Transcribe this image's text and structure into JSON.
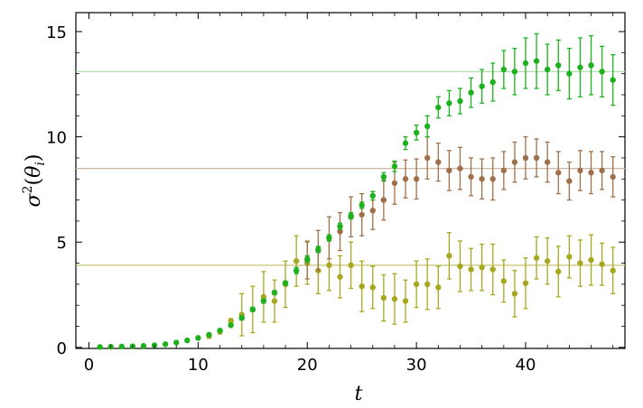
{
  "chart_data": {
    "type": "scatter",
    "xlabel": "t",
    "ylabel_parts": {
      "base": "σ",
      "sup": "2",
      "open": "(",
      "var": "θ",
      "sub": "i",
      "close": ")"
    },
    "xlim": [
      -1.2,
      49.1
    ],
    "ylim": [
      -0.05,
      15.9
    ],
    "x_ticks": [
      0,
      10,
      20,
      30,
      40
    ],
    "y_ticks": [
      0,
      5,
      10,
      15
    ],
    "grid": false,
    "legend": "none",
    "reference_lines": [
      {
        "y": 13.1,
        "color": "#a8dca8"
      },
      {
        "y": 8.5,
        "color": "#cdb8a4"
      },
      {
        "y": 3.9,
        "color": "#c9c370"
      }
    ],
    "series": [
      {
        "color": "#1db21d",
        "x": [
          1,
          2,
          3,
          4,
          5,
          6,
          7,
          8,
          9,
          10,
          11,
          12,
          13,
          14,
          15,
          16,
          17,
          18,
          19,
          20,
          21,
          22,
          23,
          24,
          25,
          26,
          27,
          28,
          29,
          30,
          31,
          32,
          33,
          34,
          35,
          36,
          37,
          38,
          39,
          40,
          41,
          42,
          43,
          44,
          45,
          46,
          47,
          48
        ],
        "y": [
          0.02,
          0.03,
          0.04,
          0.05,
          0.07,
          0.1,
          0.15,
          0.23,
          0.33,
          0.45,
          0.6,
          0.8,
          1.05,
          1.4,
          1.8,
          2.2,
          2.6,
          3.05,
          3.65,
          4.2,
          4.65,
          5.2,
          5.75,
          6.25,
          6.75,
          7.2,
          8.1,
          8.6,
          9.7,
          10.2,
          10.5,
          11.4,
          11.6,
          11.7,
          12.1,
          12.4,
          12.6,
          13.2,
          13.1,
          13.5,
          13.6,
          13.2,
          13.4,
          13.0,
          13.3,
          13.4,
          13.1,
          12.7
        ],
        "err": [
          0,
          0,
          0,
          0,
          0,
          0,
          0,
          0,
          0,
          0,
          0,
          0,
          0,
          0.1,
          0.1,
          0.1,
          0.1,
          0.1,
          0.15,
          0.15,
          0.15,
          0.15,
          0.15,
          0.15,
          0.15,
          0.2,
          0.2,
          0.25,
          0.3,
          0.35,
          0.5,
          0.5,
          0.6,
          0.6,
          0.7,
          0.8,
          0.9,
          0.9,
          1.1,
          1.2,
          1.3,
          1.2,
          1.2,
          1.2,
          1.4,
          1.4,
          1.2,
          1.2
        ]
      },
      {
        "color": "#a0704a",
        "x": [
          20,
          21,
          22,
          23,
          24,
          25,
          26,
          27,
          28,
          29,
          30,
          31,
          32,
          33,
          34,
          35,
          36,
          37,
          38,
          39,
          40,
          41,
          42,
          43,
          44,
          45,
          46,
          47,
          48
        ],
        "y": [
          4.15,
          4.6,
          5.2,
          5.5,
          6.2,
          6.3,
          6.5,
          7.0,
          7.8,
          8.0,
          8.0,
          9.0,
          8.8,
          8.4,
          8.5,
          8.1,
          8.0,
          8.0,
          8.4,
          8.8,
          9.0,
          9.0,
          8.8,
          8.3,
          7.9,
          8.4,
          8.3,
          8.4,
          8.1
        ]
      },
      {
        "color": "#a8a820",
        "x": [
          11,
          12,
          13,
          14,
          15,
          16,
          17,
          18,
          19,
          20,
          21,
          22,
          23,
          24,
          25,
          26,
          27,
          28,
          29,
          30,
          31,
          32,
          33,
          34,
          35,
          36,
          37,
          38,
          39,
          40,
          41,
          42,
          43,
          44,
          45,
          46,
          47,
          48
        ],
        "y": [
          0.55,
          0.75,
          1.25,
          1.55,
          1.8,
          2.4,
          2.2,
          3.0,
          4.1,
          4.0,
          3.65,
          3.9,
          3.35,
          3.9,
          2.9,
          2.85,
          2.35,
          2.3,
          2.2,
          3.0,
          3.0,
          2.85,
          4.35,
          3.85,
          3.7,
          3.8,
          3.7,
          3.15,
          2.55,
          3.05,
          4.25,
          4.1,
          3.6,
          4.3,
          4.0,
          4.15,
          3.95,
          3.65
        ]
      }
    ]
  }
}
